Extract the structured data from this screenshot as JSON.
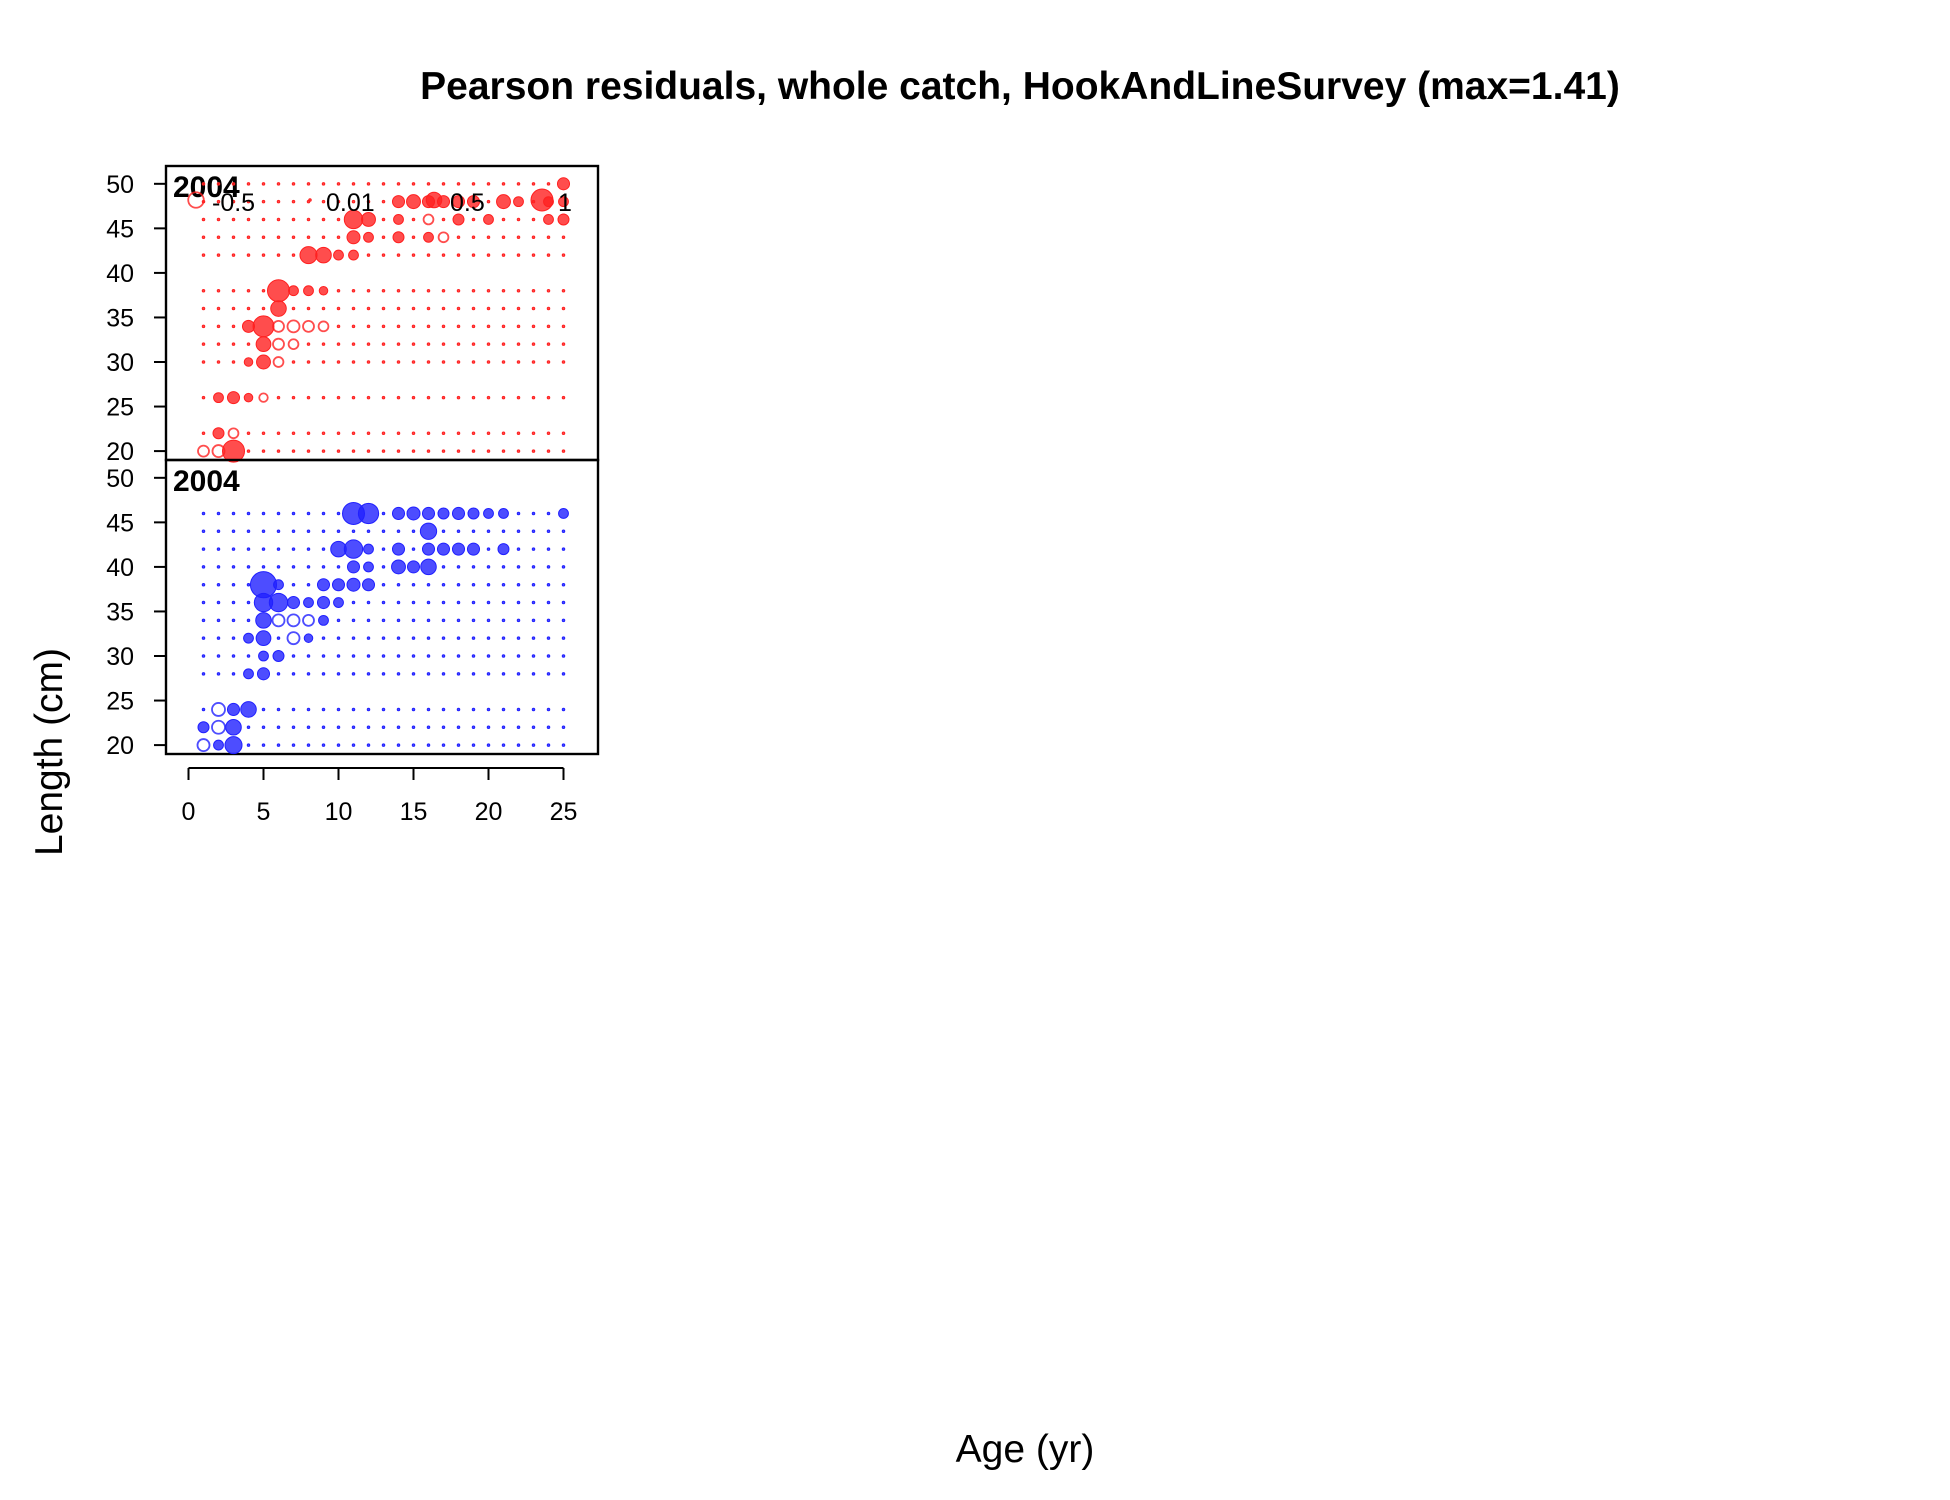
{
  "chart_data": {
    "type": "scatter",
    "title": "Pearson residuals, whole catch, HookAndLineSurvey (max=1.41)",
    "xlabel": "Age (yr)",
    "ylabel": "Length (cm)",
    "xlim": [
      -1.5,
      27.3
    ],
    "ylim": [
      19,
      52
    ],
    "x_ticks": [
      0,
      5,
      10,
      15,
      20,
      25
    ],
    "y_ticks": [
      20,
      25,
      30,
      35,
      40,
      45,
      50
    ],
    "legend": {
      "placement": "top",
      "entries": [
        {
          "label": "-0.5",
          "value": -0.5
        },
        {
          "label": "0.01",
          "value": 0.01
        },
        {
          "label": "0.5",
          "value": 0.5
        },
        {
          "label": "1",
          "value": 1
        }
      ]
    },
    "colors": {
      "female": "#ff2020",
      "male": "#2020ff"
    },
    "panels": [
      {
        "year": "2004",
        "color": "#ff2020",
        "ages": [
          1,
          2,
          3,
          4,
          5,
          6,
          7,
          8,
          9,
          10,
          11,
          12,
          13,
          14,
          15,
          16,
          17,
          18,
          19,
          20,
          21,
          22,
          23,
          24,
          25
        ],
        "lengths": [
          20,
          22,
          26,
          30,
          32,
          34,
          36,
          38,
          42,
          44,
          46,
          48,
          50
        ],
        "points": [
          {
            "x": 3,
            "y": 20,
            "r": 1.0
          },
          {
            "x": 1,
            "y": 20,
            "r": -0.25
          },
          {
            "x": 2,
            "y": 20,
            "r": -0.3
          },
          {
            "x": 2,
            "y": 22,
            "r": 0.25
          },
          {
            "x": 3,
            "y": 22,
            "r": -0.2
          },
          {
            "x": 2,
            "y": 26,
            "r": 0.2
          },
          {
            "x": 3,
            "y": 26,
            "r": 0.3
          },
          {
            "x": 4,
            "y": 26,
            "r": 0.15
          },
          {
            "x": 5,
            "y": 26,
            "r": -0.15
          },
          {
            "x": 4,
            "y": 30,
            "r": 0.15
          },
          {
            "x": 5,
            "y": 30,
            "r": 0.4
          },
          {
            "x": 6,
            "y": 30,
            "r": -0.2
          },
          {
            "x": 5,
            "y": 32,
            "r": 0.45
          },
          {
            "x": 6,
            "y": 32,
            "r": -0.25
          },
          {
            "x": 7,
            "y": 32,
            "r": -0.2
          },
          {
            "x": 4,
            "y": 34,
            "r": 0.3
          },
          {
            "x": 5,
            "y": 34,
            "r": 0.9
          },
          {
            "x": 6,
            "y": 34,
            "r": -0.25
          },
          {
            "x": 7,
            "y": 34,
            "r": -0.3
          },
          {
            "x": 8,
            "y": 34,
            "r": -0.25
          },
          {
            "x": 9,
            "y": 34,
            "r": -0.2
          },
          {
            "x": 6,
            "y": 36,
            "r": 0.5
          },
          {
            "x": 6,
            "y": 38,
            "r": 1.0
          },
          {
            "x": 7,
            "y": 38,
            "r": 0.2
          },
          {
            "x": 8,
            "y": 38,
            "r": 0.2
          },
          {
            "x": 9,
            "y": 38,
            "r": 0.15
          },
          {
            "x": 8,
            "y": 42,
            "r": 0.6
          },
          {
            "x": 9,
            "y": 42,
            "r": 0.5
          },
          {
            "x": 10,
            "y": 42,
            "r": 0.2
          },
          {
            "x": 11,
            "y": 42,
            "r": 0.2
          },
          {
            "x": 11,
            "y": 44,
            "r": 0.35
          },
          {
            "x": 12,
            "y": 44,
            "r": 0.2
          },
          {
            "x": 14,
            "y": 44,
            "r": 0.25
          },
          {
            "x": 16,
            "y": 44,
            "r": 0.2
          },
          {
            "x": 17,
            "y": 44,
            "r": -0.2
          },
          {
            "x": 11,
            "y": 46,
            "r": 0.7
          },
          {
            "x": 12,
            "y": 46,
            "r": 0.4
          },
          {
            "x": 14,
            "y": 46,
            "r": 0.2
          },
          {
            "x": 16,
            "y": 46,
            "r": -0.2
          },
          {
            "x": 18,
            "y": 46,
            "r": 0.25
          },
          {
            "x": 20,
            "y": 46,
            "r": 0.2
          },
          {
            "x": 24,
            "y": 46,
            "r": 0.2
          },
          {
            "x": 25,
            "y": 46,
            "r": 0.25
          },
          {
            "x": 14,
            "y": 48,
            "r": 0.3
          },
          {
            "x": 15,
            "y": 48,
            "r": 0.4
          },
          {
            "x": 16,
            "y": 48,
            "r": 0.3
          },
          {
            "x": 17,
            "y": 48,
            "r": 0.3
          },
          {
            "x": 18,
            "y": 48,
            "r": 0.3
          },
          {
            "x": 19,
            "y": 48,
            "r": 0.3
          },
          {
            "x": 21,
            "y": 48,
            "r": 0.4
          },
          {
            "x": 22,
            "y": 48,
            "r": 0.2
          },
          {
            "x": 24,
            "y": 48,
            "r": 0.2
          },
          {
            "x": 25,
            "y": 48,
            "r": 0.2
          },
          {
            "x": 25,
            "y": 50,
            "r": 0.3
          }
        ]
      },
      {
        "year": "2004",
        "color": "#2020ff",
        "ages": [
          1,
          2,
          3,
          4,
          5,
          6,
          7,
          8,
          9,
          10,
          11,
          12,
          13,
          14,
          15,
          16,
          17,
          18,
          19,
          20,
          21,
          22,
          23,
          24,
          25
        ],
        "lengths": [
          20,
          22,
          24,
          28,
          30,
          32,
          34,
          36,
          38,
          40,
          42,
          44,
          46
        ],
        "points": [
          {
            "x": 3,
            "y": 20,
            "r": 0.6
          },
          {
            "x": 1,
            "y": 20,
            "r": -0.3
          },
          {
            "x": 2,
            "y": 20,
            "r": 0.2
          },
          {
            "x": 1,
            "y": 22,
            "r": 0.25
          },
          {
            "x": 2,
            "y": 22,
            "r": -0.35
          },
          {
            "x": 3,
            "y": 22,
            "r": 0.5
          },
          {
            "x": 2,
            "y": 24,
            "r": -0.35
          },
          {
            "x": 3,
            "y": 24,
            "r": 0.3
          },
          {
            "x": 4,
            "y": 24,
            "r": 0.5
          },
          {
            "x": 4,
            "y": 28,
            "r": 0.2
          },
          {
            "x": 5,
            "y": 28,
            "r": 0.3
          },
          {
            "x": 6,
            "y": 30,
            "r": 0.25
          },
          {
            "x": 5,
            "y": 30,
            "r": 0.2
          },
          {
            "x": 5,
            "y": 32,
            "r": 0.45
          },
          {
            "x": 4,
            "y": 32,
            "r": 0.2
          },
          {
            "x": 7,
            "y": 32,
            "r": -0.3
          },
          {
            "x": 8,
            "y": 32,
            "r": 0.15
          },
          {
            "x": 5,
            "y": 34,
            "r": 0.5
          },
          {
            "x": 6,
            "y": 34,
            "r": -0.3
          },
          {
            "x": 7,
            "y": 34,
            "r": -0.3
          },
          {
            "x": 8,
            "y": 34,
            "r": -0.25
          },
          {
            "x": 9,
            "y": 34,
            "r": 0.2
          },
          {
            "x": 5,
            "y": 36,
            "r": 0.7
          },
          {
            "x": 6,
            "y": 36,
            "r": 0.7
          },
          {
            "x": 7,
            "y": 36,
            "r": 0.3
          },
          {
            "x": 8,
            "y": 36,
            "r": 0.2
          },
          {
            "x": 9,
            "y": 36,
            "r": 0.3
          },
          {
            "x": 10,
            "y": 36,
            "r": 0.2
          },
          {
            "x": 5,
            "y": 38,
            "r": 1.41
          },
          {
            "x": 6,
            "y": 38,
            "r": 0.2
          },
          {
            "x": 9,
            "y": 38,
            "r": 0.3
          },
          {
            "x": 10,
            "y": 38,
            "r": 0.3
          },
          {
            "x": 11,
            "y": 38,
            "r": 0.35
          },
          {
            "x": 12,
            "y": 38,
            "r": 0.3
          },
          {
            "x": 11,
            "y": 40,
            "r": 0.3
          },
          {
            "x": 12,
            "y": 40,
            "r": 0.2
          },
          {
            "x": 14,
            "y": 40,
            "r": 0.4
          },
          {
            "x": 15,
            "y": 40,
            "r": 0.3
          },
          {
            "x": 16,
            "y": 40,
            "r": 0.5
          },
          {
            "x": 10,
            "y": 42,
            "r": 0.5
          },
          {
            "x": 11,
            "y": 42,
            "r": 0.7
          },
          {
            "x": 12,
            "y": 42,
            "r": 0.2
          },
          {
            "x": 14,
            "y": 42,
            "r": 0.3
          },
          {
            "x": 16,
            "y": 42,
            "r": 0.3
          },
          {
            "x": 17,
            "y": 42,
            "r": 0.3
          },
          {
            "x": 18,
            "y": 42,
            "r": 0.3
          },
          {
            "x": 19,
            "y": 42,
            "r": 0.3
          },
          {
            "x": 21,
            "y": 42,
            "r": 0.25
          },
          {
            "x": 16,
            "y": 44,
            "r": 0.55
          },
          {
            "x": 11,
            "y": 46,
            "r": 1.0
          },
          {
            "x": 12,
            "y": 46,
            "r": 0.85
          },
          {
            "x": 14,
            "y": 46,
            "r": 0.3
          },
          {
            "x": 15,
            "y": 46,
            "r": 0.35
          },
          {
            "x": 16,
            "y": 46,
            "r": 0.3
          },
          {
            "x": 17,
            "y": 46,
            "r": 0.25
          },
          {
            "x": 18,
            "y": 46,
            "r": 0.3
          },
          {
            "x": 19,
            "y": 46,
            "r": 0.25
          },
          {
            "x": 20,
            "y": 46,
            "r": 0.2
          },
          {
            "x": 21,
            "y": 46,
            "r": 0.2
          },
          {
            "x": 25,
            "y": 46,
            "r": 0.2
          }
        ]
      }
    ]
  }
}
